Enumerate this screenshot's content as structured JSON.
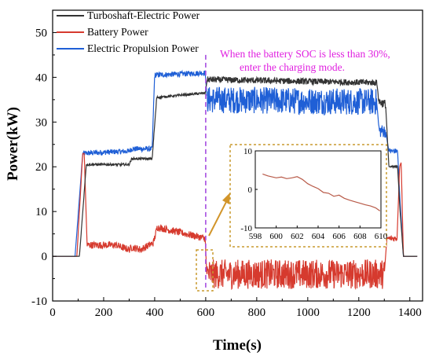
{
  "chart_data": [
    {
      "type": "line",
      "title": "",
      "xlabel": "Time(s)",
      "ylabel": "Power(kW)",
      "xlim": [
        0,
        1450
      ],
      "ylim": [
        -10,
        55
      ],
      "xticks": [
        0,
        200,
        400,
        600,
        800,
        1000,
        1200,
        1400
      ],
      "yticks": [
        -10,
        0,
        10,
        20,
        30,
        40,
        50
      ],
      "legend_position": "top-left",
      "series": [
        {
          "name": "Turboshaft-Electric Power",
          "color": "#333333",
          "points": [
            [
              0,
              0
            ],
            [
              90,
              0
            ],
            [
              105,
              0
            ],
            [
              132,
              20.5
            ],
            [
              300,
              20.5
            ],
            [
              310,
              21.8
            ],
            [
              390,
              21.8
            ],
            [
              408,
              35.5
            ],
            [
              598,
              36.5
            ],
            [
              606,
              39.5
            ],
            [
              1270,
              38.8
            ],
            [
              1280,
              34.5
            ],
            [
              1305,
              34
            ],
            [
              1318,
              20
            ],
            [
              1352,
              20
            ],
            [
              1362,
              10
            ],
            [
              1375,
              0
            ],
            [
              1430,
              0
            ]
          ]
        },
        {
          "name": "Battery Power",
          "color": "#d63a2e",
          "points": [
            [
              0,
              0
            ],
            [
              95,
              0
            ],
            [
              118,
              23
            ],
            [
              124,
              23
            ],
            [
              135,
              2.5
            ],
            [
              250,
              2.5
            ],
            [
              270,
              2
            ],
            [
              300,
              1.5
            ],
            [
              312,
              2
            ],
            [
              345,
              1.5
            ],
            [
              395,
              3
            ],
            [
              410,
              6.5
            ],
            [
              598,
              4
            ],
            [
              604,
              -4
            ],
            [
              1300,
              -4
            ],
            [
              1310,
              4
            ],
            [
              1350,
              4
            ],
            [
              1360,
              20
            ],
            [
              1366,
              21
            ],
            [
              1375,
              0
            ],
            [
              1430,
              0
            ]
          ]
        },
        {
          "name": "Electric Propulsion Power",
          "color": "#1f5fd6",
          "points": [
            [
              0,
              0
            ],
            [
              88,
              0
            ],
            [
              118,
              23
            ],
            [
              300,
              23.5
            ],
            [
              310,
              24
            ],
            [
              390,
              24
            ],
            [
              400,
              40.5
            ],
            [
              598,
              41
            ],
            [
              606,
              35
            ],
            [
              1270,
              34.5
            ],
            [
              1280,
              28
            ],
            [
              1305,
              28
            ],
            [
              1318,
              23.5
            ],
            [
              1352,
              23.5
            ],
            [
              1362,
              12
            ],
            [
              1375,
              0
            ],
            [
              1430,
              0
            ]
          ]
        }
      ],
      "annotations": [
        "When the battery SOC is less than 30%,",
        "enter the charging mode."
      ]
    },
    {
      "type": "line",
      "title": "",
      "xlim": [
        598,
        610
      ],
      "ylim": [
        -10,
        10
      ],
      "xticks": [
        598,
        600,
        602,
        604,
        606,
        608,
        610
      ],
      "yticks": [
        -10,
        0,
        10
      ],
      "series": [
        {
          "color": "#b85a48",
          "points": [
            [
              598.7,
              4
            ],
            [
              599.2,
              3.5
            ],
            [
              600,
              3
            ],
            [
              600.5,
              3.2
            ],
            [
              601,
              2.8
            ],
            [
              601.5,
              3
            ],
            [
              602,
              3.3
            ],
            [
              602.5,
              2.6
            ],
            [
              603,
              1.5
            ],
            [
              603.5,
              0.8
            ],
            [
              604,
              0.2
            ],
            [
              604.5,
              -0.8
            ],
            [
              605,
              -1
            ],
            [
              605.5,
              -1.8
            ],
            [
              606,
              -1.5
            ],
            [
              606.5,
              -2.3
            ],
            [
              607,
              -2.8
            ],
            [
              607.5,
              -3.2
            ],
            [
              608,
              -3.6
            ],
            [
              608.5,
              -4
            ],
            [
              609,
              -4.3
            ],
            [
              609.5,
              -4.8
            ],
            [
              609.9,
              -5.6
            ]
          ]
        }
      ]
    }
  ]
}
